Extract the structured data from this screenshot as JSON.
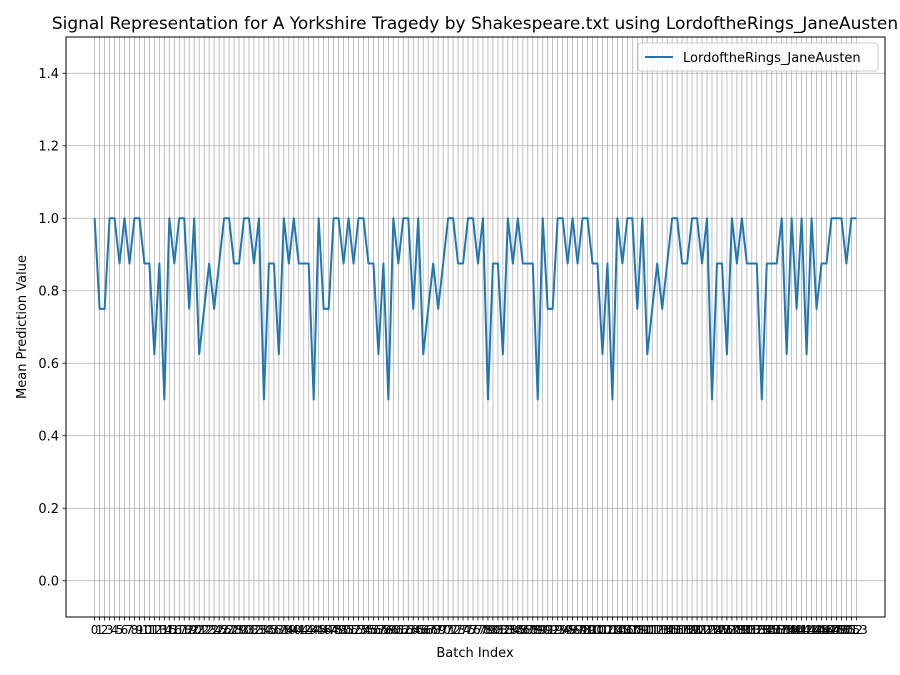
{
  "chart_data": {
    "type": "line",
    "title": "Signal Representation for A Yorkshire Tragedy by Shakespeare.txt using LordoftheRings_JaneAusten",
    "xlabel": "Batch Index",
    "ylabel": "Mean Prediction Value",
    "xlim": [
      -5.75,
      158.75
    ],
    "ylim": [
      -0.1,
      1.5
    ],
    "yticks": [
      0.0,
      0.2,
      0.4,
      0.6,
      0.8,
      1.0,
      1.2,
      1.4
    ],
    "grid": true,
    "legend": "top-right",
    "x": [
      0,
      1,
      2,
      3,
      4,
      5,
      6,
      7,
      8,
      9,
      10,
      11,
      12,
      13,
      14,
      15,
      16,
      17,
      18,
      19,
      20,
      21,
      22,
      23,
      24,
      25,
      26,
      27,
      28,
      29,
      30,
      31,
      32,
      33,
      34,
      35,
      36,
      37,
      38,
      39,
      40,
      41,
      42,
      43,
      44,
      45,
      46,
      47,
      48,
      49,
      50,
      51,
      52,
      53,
      54,
      55,
      56,
      57,
      58,
      59,
      60,
      61,
      62,
      63,
      64,
      65,
      66,
      67,
      68,
      69,
      70,
      71,
      72,
      73,
      74,
      75,
      76,
      77,
      78,
      79,
      80,
      81,
      82,
      83,
      84,
      85,
      86,
      87,
      88,
      89,
      90,
      91,
      92,
      93,
      94,
      95,
      96,
      97,
      98,
      99,
      100,
      101,
      102,
      103,
      104,
      105,
      106,
      107,
      108,
      109,
      110,
      111,
      112,
      113,
      114,
      115,
      116,
      117,
      118,
      119,
      120,
      121,
      122,
      123,
      124,
      125,
      126,
      127,
      128,
      129,
      130,
      131,
      132,
      133,
      134,
      135,
      136,
      137,
      138,
      139,
      140,
      141,
      142,
      143,
      144,
      145,
      146,
      147,
      148,
      149,
      150,
      151,
      152,
      153
    ],
    "series": [
      {
        "name": "LordoftheRings_JaneAusten",
        "color": "#1f77b4",
        "values": [
          1.0,
          0.75,
          0.75,
          1.0,
          1.0,
          0.875,
          1.0,
          0.875,
          1.0,
          1.0,
          0.875,
          0.875,
          0.625,
          0.875,
          0.5,
          1.0,
          0.875,
          1.0,
          1.0,
          0.75,
          1.0,
          0.625,
          0.75,
          0.875,
          0.75,
          0.875,
          1.0,
          1.0,
          0.875,
          0.875,
          1.0,
          1.0,
          0.875,
          1.0,
          0.5,
          0.875,
          0.875,
          0.625,
          1.0,
          0.875,
          1.0,
          0.875,
          0.875,
          0.875,
          0.5,
          1.0,
          0.75,
          0.75,
          1.0,
          1.0,
          0.875,
          1.0,
          0.875,
          1.0,
          1.0,
          0.875,
          0.875,
          0.625,
          0.875,
          0.5,
          1.0,
          0.875,
          1.0,
          1.0,
          0.75,
          1.0,
          0.625,
          0.75,
          0.875,
          0.75,
          0.875,
          1.0,
          1.0,
          0.875,
          0.875,
          1.0,
          1.0,
          0.875,
          1.0,
          0.5,
          0.875,
          0.875,
          0.625,
          1.0,
          0.875,
          1.0,
          0.875,
          0.875,
          0.875,
          0.5,
          1.0,
          0.75,
          0.75,
          1.0,
          1.0,
          0.875,
          1.0,
          0.875,
          1.0,
          1.0,
          0.875,
          0.875,
          0.625,
          0.875,
          0.5,
          1.0,
          0.875,
          1.0,
          1.0,
          0.75,
          1.0,
          0.625,
          0.75,
          0.875,
          0.75,
          0.875,
          1.0,
          1.0,
          0.875,
          0.875,
          1.0,
          1.0,
          0.875,
          1.0,
          0.5,
          0.875,
          0.875,
          0.625,
          1.0,
          0.875,
          1.0,
          0.875,
          0.875,
          0.875,
          0.5,
          0.875,
          0.875,
          0.875,
          1.0,
          0.625,
          1.0,
          0.75,
          1.0,
          0.625,
          1.0,
          0.75,
          0.875,
          0.875,
          1.0,
          1.0,
          1.0,
          0.875,
          1.0,
          1.0
        ]
      }
    ]
  }
}
